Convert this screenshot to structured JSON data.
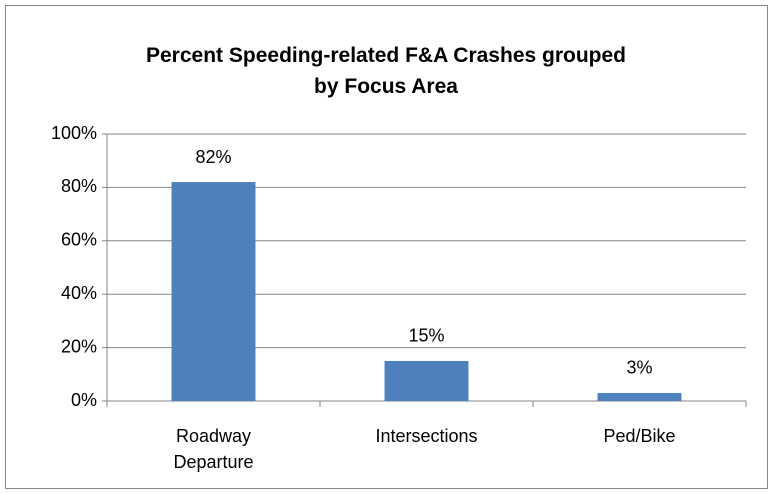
{
  "chart_data": {
    "type": "bar",
    "title": "Percent Speeding-related F&A Crashes grouped by Focus Area",
    "categories": [
      "Roadway Departure",
      "Intersections",
      "Ped/Bike"
    ],
    "values": [
      82,
      15,
      3
    ],
    "value_labels": [
      "82%",
      "15%",
      "3%"
    ],
    "color": "#4f81bd",
    "ylim": [
      0,
      100
    ],
    "yticks": [
      {
        "value": 0,
        "label": "0%"
      },
      {
        "value": 20,
        "label": "20%"
      },
      {
        "value": 40,
        "label": "40%"
      },
      {
        "value": 60,
        "label": "60%"
      },
      {
        "value": 80,
        "label": "80%"
      },
      {
        "value": 100,
        "label": "100%"
      }
    ],
    "grid": true
  }
}
